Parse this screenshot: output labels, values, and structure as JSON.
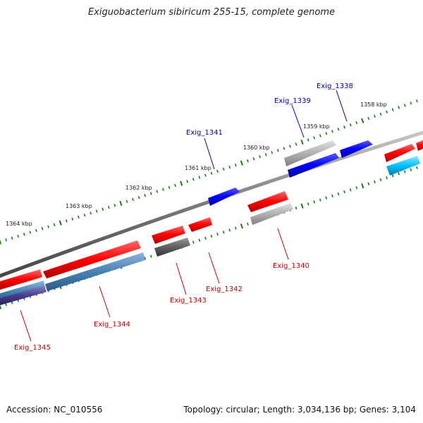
{
  "title": "Exiguobacterium sibiricum 255-15, complete genome",
  "footer": {
    "accession": "Accession: NC_010556",
    "summary": "Topology: circular; Length: 3,034,136 bp; Genes: 3,104"
  },
  "scale_labels": [
    "1364 kbp",
    "1363 kbp",
    "1362 kbp",
    "1361 kbp",
    "1360 kbp",
    "1359 kbp",
    "1358 kbp"
  ],
  "genes": [
    {
      "name": "Exig_1338",
      "strand": "forward",
      "color": "#0000cc"
    },
    {
      "name": "Exig_1339",
      "strand": "forward",
      "color": "#0000cc"
    },
    {
      "name": "Exig_1341",
      "strand": "forward",
      "color": "#0000cc"
    },
    {
      "name": "Exig_1340",
      "strand": "reverse",
      "color": "#cc0000"
    },
    {
      "name": "Exig_1342",
      "strand": "reverse",
      "color": "#cc0000"
    },
    {
      "name": "Exig_1343",
      "strand": "reverse",
      "color": "#cc0000"
    },
    {
      "name": "Exig_1344",
      "strand": "reverse",
      "color": "#cc0000"
    },
    {
      "name": "Exig_1345",
      "strand": "reverse",
      "color": "#cc0000"
    }
  ],
  "colors": {
    "backbone": "#808080",
    "tick": "#1a7a1a",
    "forward_label": "#0000aa",
    "reverse_label": "#cc0000"
  }
}
